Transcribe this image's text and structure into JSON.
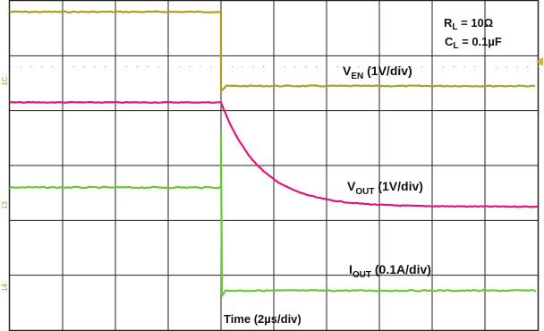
{
  "chart_data": {
    "type": "line",
    "title": "",
    "grid": true,
    "x_divisions": 10,
    "y_divisions": 6,
    "time_scale": {
      "text": "Time (2",
      "mu": "µ",
      "unit": "s/div)"
    },
    "conditions": {
      "rl": {
        "sym": "R",
        "sub": "L",
        "val": " = 10",
        "unit": "Ω"
      },
      "cl": {
        "sym": "C",
        "sub": "L",
        "val": " = 0.1",
        "mu": "µ",
        "unit": "F"
      }
    },
    "series": [
      {
        "key": "ven",
        "name_main": "V",
        "name_sub": "EN",
        "scale": " (1V/div)",
        "color": "#a8a020",
        "channel_marker": "1C",
        "high_div": 5.8,
        "low_div": 4.45,
        "step_div": 4.0
      },
      {
        "key": "vout",
        "name_main": "V",
        "name_sub": "OUT",
        "scale": " (1V/div)",
        "color": "#e0157f",
        "channel_marker": "",
        "high_div": 4.15,
        "low_div": 2.25,
        "step_div": 4.0,
        "tau_div": 0.75
      },
      {
        "key": "iout",
        "name_main": "I",
        "name_sub": "OUT",
        "scale": " (0.1A/div)",
        "color": "#6cc43a",
        "channel_marker": "13",
        "high_div": 2.6,
        "low_div": 0.72,
        "step_div": 4.0,
        "spike_div": 1.3
      }
    ],
    "extra_channel_markers": [
      "14"
    ]
  }
}
